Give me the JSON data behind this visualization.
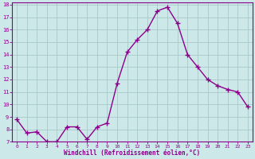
{
  "x": [
    0,
    1,
    2,
    3,
    4,
    5,
    6,
    7,
    8,
    9,
    10,
    11,
    12,
    13,
    14,
    15,
    16,
    17,
    18,
    19,
    20,
    21,
    22,
    23
  ],
  "y": [
    8.8,
    7.7,
    7.8,
    7.0,
    7.0,
    8.2,
    8.2,
    7.2,
    8.2,
    8.5,
    11.7,
    14.2,
    15.2,
    16.0,
    17.5,
    17.8,
    16.5,
    14.0,
    13.0,
    12.0,
    11.5,
    11.2,
    11.0,
    9.8
  ],
  "line_color": "#8B008B",
  "marker": "+",
  "marker_size": 4,
  "line_width": 1.0,
  "background_color": "#cde8e8",
  "grid_color": "#a8c8c8",
  "xlabel": "Windchill (Refroidissement éolien,°C)",
  "xlabel_color": "#8B008B",
  "tick_color": "#8B008B",
  "spine_color": "#8B008B",
  "ylim": [
    7,
    18
  ],
  "xlim": [
    -0.5,
    23.5
  ],
  "yticks": [
    7,
    8,
    9,
    10,
    11,
    12,
    13,
    14,
    15,
    16,
    17,
    18
  ],
  "xticks": [
    0,
    1,
    2,
    3,
    4,
    5,
    6,
    7,
    8,
    9,
    10,
    11,
    12,
    13,
    14,
    15,
    16,
    17,
    18,
    19,
    20,
    21,
    22,
    23
  ],
  "xlabel_fontsize": 5.5,
  "xtick_fontsize": 4.5,
  "ytick_fontsize": 5.0
}
